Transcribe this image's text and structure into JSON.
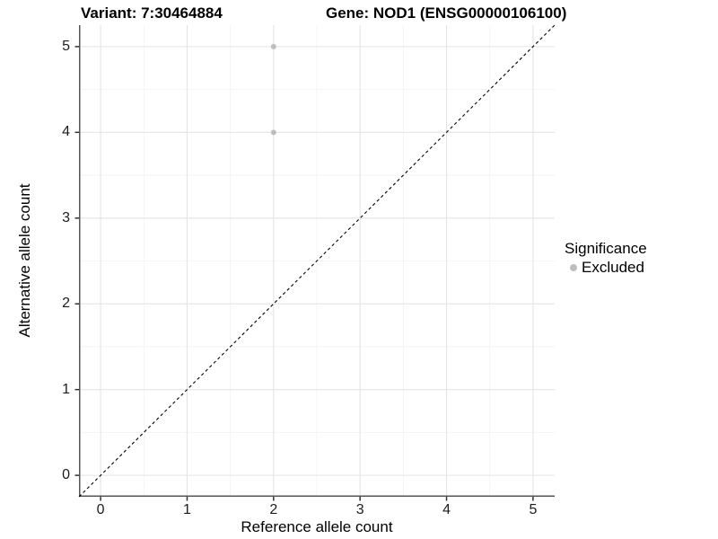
{
  "titles": {
    "variant": "Variant: 7:30464884",
    "gene": "Gene: NOD1 (ENSG00000106100)"
  },
  "chart_data": {
    "type": "scatter",
    "xlabel": "Reference allele count",
    "ylabel": "Alternative allele count",
    "xlim": [
      -0.25,
      5.25
    ],
    "ylim": [
      -0.25,
      5.25
    ],
    "x_ticks": [
      0,
      1,
      2,
      3,
      4,
      5
    ],
    "y_ticks": [
      0,
      1,
      2,
      3,
      4,
      5
    ],
    "x_minor_ticks": [
      0.5,
      1.5,
      2.5,
      3.5,
      4.5
    ],
    "y_minor_ticks": [
      0.5,
      1.5,
      2.5,
      3.5,
      4.5
    ],
    "grid": true,
    "series": [
      {
        "name": "Excluded",
        "color": "#bebebe",
        "points": [
          {
            "x": 2,
            "y": 5
          },
          {
            "x": 2,
            "y": 4
          }
        ]
      }
    ],
    "reference_line": {
      "type": "identity",
      "style": "dashed",
      "from": [
        -0.25,
        -0.25
      ],
      "to": [
        5.25,
        5.25
      ],
      "color": "#000000"
    },
    "legend": {
      "title": "Significance",
      "position": "right",
      "items": [
        {
          "label": "Excluded",
          "color": "#bebebe"
        }
      ]
    }
  },
  "colors": {
    "point": "#bebebe",
    "grid_major": "#e4e4e4",
    "grid_minor": "#f2f2f2",
    "axis_line": "#565656",
    "tick": "#333333",
    "tick_label": "#1c1c1c",
    "background": "#ffffff"
  }
}
